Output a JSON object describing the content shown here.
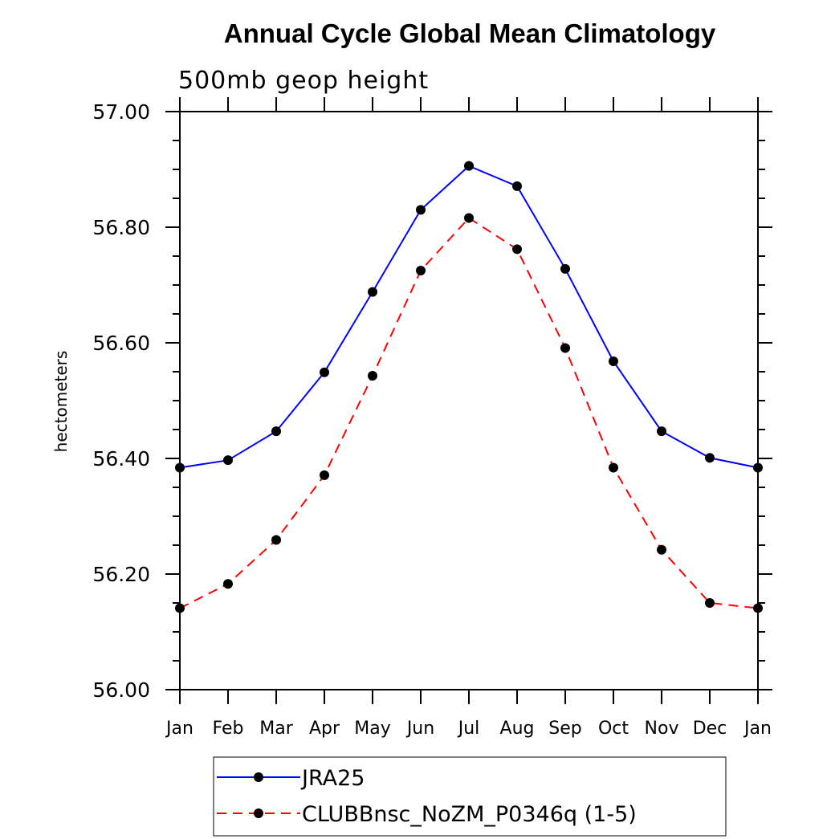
{
  "chart_data": {
    "type": "line",
    "title": "Annual Cycle Global Mean Climatology",
    "subtitle": "500mb geop height",
    "xlabel": "",
    "ylabel": "hectometers",
    "categories": [
      "Jan",
      "Feb",
      "Mar",
      "Apr",
      "May",
      "Jun",
      "Jul",
      "Aug",
      "Sep",
      "Oct",
      "Nov",
      "Dec",
      "Jan"
    ],
    "ylim": [
      56.0,
      57.0
    ],
    "yticks": [
      "56.00",
      "56.20",
      "56.40",
      "56.60",
      "56.80",
      "57.00"
    ],
    "series": [
      {
        "name": "JRA25",
        "color": "#0000ff",
        "dash": "solid",
        "values": [
          56.384,
          56.397,
          56.447,
          56.549,
          56.688,
          56.83,
          56.906,
          56.871,
          56.728,
          56.568,
          56.447,
          56.401,
          56.384
        ]
      },
      {
        "name": "CLUBBnsc_NoZM_P0346q (1-5)",
        "color": "#ff0000",
        "dash": "dashed",
        "values": [
          56.141,
          56.183,
          56.259,
          56.371,
          56.543,
          56.725,
          56.816,
          56.762,
          56.591,
          56.384,
          56.242,
          56.15,
          56.141
        ]
      }
    ],
    "grid": false,
    "legend_position": "bottom"
  }
}
